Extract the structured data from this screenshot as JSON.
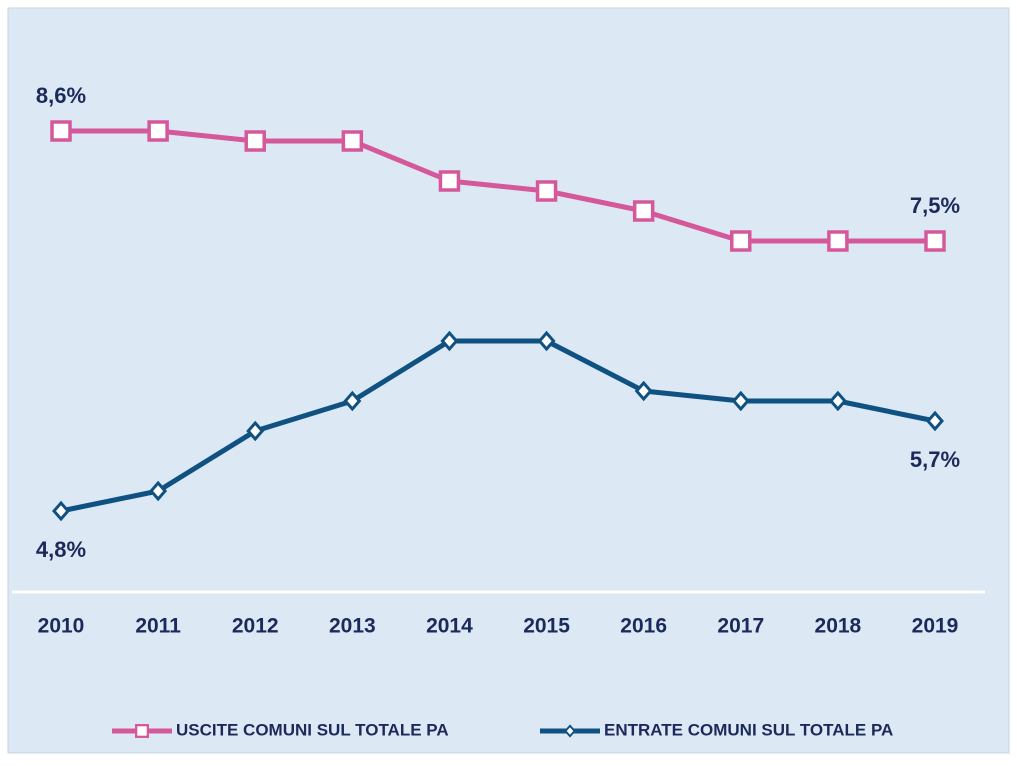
{
  "chart_data": {
    "type": "line",
    "categories": [
      "2010",
      "2011",
      "2012",
      "2013",
      "2014",
      "2015",
      "2016",
      "2017",
      "2018",
      "2019"
    ],
    "series": [
      {
        "name": "USCITE COMUNI SUL TOTALE PA",
        "color": "#d5589a",
        "marker": "square",
        "values": [
          8.6,
          8.6,
          8.5,
          8.5,
          8.1,
          8.0,
          7.8,
          7.5,
          7.5,
          7.5
        ],
        "value_labels": [
          "8,6%",
          null,
          null,
          null,
          null,
          null,
          null,
          null,
          null,
          "7,5%"
        ]
      },
      {
        "name": "ENTRATE COMUNI SUL TOTALE PA",
        "color": "#0f5282",
        "marker": "diamond",
        "values": [
          4.8,
          5.0,
          5.6,
          5.9,
          6.5,
          6.5,
          6.0,
          5.9,
          5.9,
          5.7
        ],
        "value_labels": [
          "4,8%",
          null,
          null,
          null,
          null,
          null,
          null,
          null,
          null,
          "5,7%"
        ]
      }
    ]
  }
}
